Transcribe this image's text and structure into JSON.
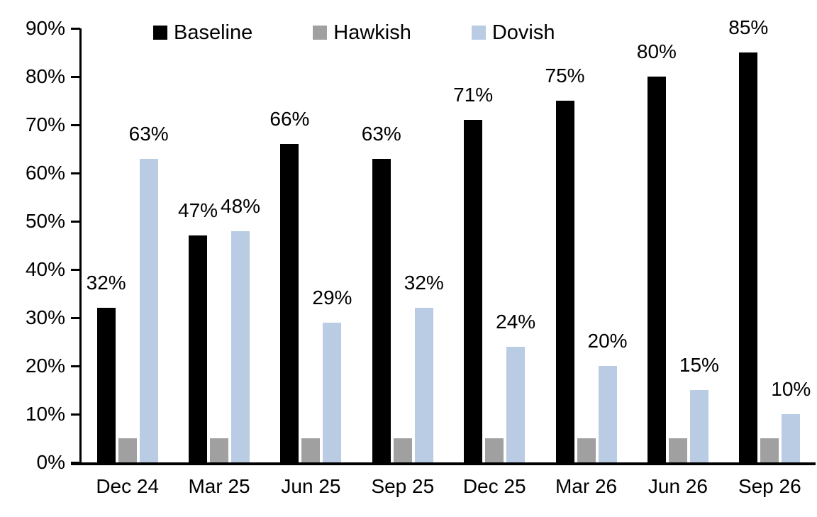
{
  "chart_data": {
    "type": "bar",
    "title": "",
    "categories": [
      "Dec 24",
      "Mar 25",
      "Jun 25",
      "Sep 25",
      "Dec 25",
      "Mar 26",
      "Jun 26",
      "Sep 26"
    ],
    "series": [
      {
        "name": "Baseline",
        "color": "#000000",
        "values": [
          32,
          47,
          66,
          63,
          71,
          75,
          80,
          85
        ],
        "data_labels": [
          "32%",
          "47%",
          "66%",
          "63%",
          "71%",
          "75%",
          "80%",
          "85%"
        ]
      },
      {
        "name": "Hawkish",
        "color": "#A0A0A0",
        "values": [
          5,
          5,
          5,
          5,
          5,
          5,
          5,
          5
        ],
        "data_labels": null
      },
      {
        "name": "Dovish",
        "color": "#B9CCE4",
        "values": [
          63,
          48,
          29,
          32,
          24,
          20,
          15,
          10
        ],
        "data_labels": [
          "63%",
          "48%",
          "29%",
          "32%",
          "24%",
          "20%",
          "15%",
          "10%"
        ]
      }
    ],
    "y_axis": {
      "min": 0,
      "max": 90,
      "tick_interval": 10,
      "ticks": [
        "0%",
        "10%",
        "20%",
        "30%",
        "40%",
        "50%",
        "60%",
        "70%",
        "80%",
        "90%"
      ]
    },
    "x_axis": {
      "label": ""
    },
    "legend": {
      "position": "top"
    },
    "grid": "off",
    "axis_color": "#000000",
    "background": "#FFFFFF"
  }
}
